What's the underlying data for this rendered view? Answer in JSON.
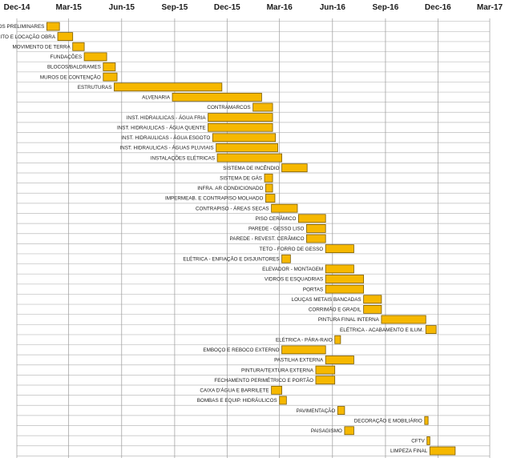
{
  "chart_data": {
    "type": "bar",
    "subtype": "gantt",
    "title": "",
    "xlabel": "",
    "ylabel": "",
    "x_axis": {
      "kind": "date",
      "range": [
        "2014-12-01",
        "2017-03-01"
      ],
      "tick_labels": [
        "Dec-14",
        "Mar-15",
        "Jun-15",
        "Sep-15",
        "Dec-15",
        "Mar-16",
        "Jun-16",
        "Sep-16",
        "Dec-16",
        "Mar-17"
      ],
      "tick_dates": [
        "2014-12-01",
        "2015-03-01",
        "2015-06-01",
        "2015-09-01",
        "2015-12-01",
        "2016-03-01",
        "2016-06-01",
        "2016-09-01",
        "2016-12-01",
        "2017-03-01"
      ],
      "position": "top",
      "grid": true
    },
    "bar_color": "#f6b800",
    "tasks": [
      {
        "label": "SERVIÇOS  PRELIMINARES",
        "start": "2015-01-22",
        "end": "2015-02-13"
      },
      {
        "label": "GABARITO  E LOCAÇÃO OBRA",
        "start": "2015-02-10",
        "end": "2015-03-08"
      },
      {
        "label": "MOVIMENTO  DE TERRA",
        "start": "2015-03-08",
        "end": "2015-03-28"
      },
      {
        "label": "FUNDAÇÕES",
        "start": "2015-03-28",
        "end": "2015-05-06"
      },
      {
        "label": "BLOCOS/BALDRAMES",
        "start": "2015-04-30",
        "end": "2015-05-21"
      },
      {
        "label": "MUROS DE CONTENÇÃO",
        "start": "2015-04-30",
        "end": "2015-05-24"
      },
      {
        "label": "ESTRUTURAS",
        "start": "2015-05-19",
        "end": "2015-11-22"
      },
      {
        "label": "ALVENARIA",
        "start": "2015-08-28",
        "end": "2016-01-30"
      },
      {
        "label": "CONTRAMARCOS",
        "start": "2016-01-15",
        "end": "2016-02-18"
      },
      {
        "label": "INST. HIDRAULICAS  - ÁGUA FRIA",
        "start": "2015-10-29",
        "end": "2016-02-18"
      },
      {
        "label": "INST.  HIDRAULICAS  - ÁGUA QUENTE",
        "start": "2015-10-29",
        "end": "2016-02-18"
      },
      {
        "label": "INST.  HIDRAULICAS  - ÁGUA ESGOTO",
        "start": "2015-11-06",
        "end": "2016-02-23"
      },
      {
        "label": "INST. HIDRAULICAS  - ÁGUAS PLUVIAIS",
        "start": "2015-11-12",
        "end": "2016-02-27"
      },
      {
        "label": "INSTALAÇÕES  ELÉTRICAS",
        "start": "2015-11-14",
        "end": "2016-03-05"
      },
      {
        "label": "SISTEMA  DE INCÊNDIO",
        "start": "2016-03-05",
        "end": "2016-04-18"
      },
      {
        "label": "SISTEMA  DE GÁS",
        "start": "2016-02-04",
        "end": "2016-02-18"
      },
      {
        "label": "INFRA.  AR CONDICIONADO",
        "start": "2016-02-06",
        "end": "2016-02-18"
      },
      {
        "label": "IMPERMEAB.  E CONTRAPISO MOLHADO",
        "start": "2016-02-06",
        "end": "2016-02-22"
      },
      {
        "label": "CONTRAPISO  - ÁREAS  SECAS",
        "start": "2016-02-16",
        "end": "2016-04-01"
      },
      {
        "label": "PISO CERÂMICO",
        "start": "2016-04-03",
        "end": "2016-05-20"
      },
      {
        "label": "PAREDE  - GESSO  LISO",
        "start": "2016-04-17",
        "end": "2016-05-20"
      },
      {
        "label": "PAREDE  - REVEST.  CERÂMICO",
        "start": "2016-04-17",
        "end": "2016-05-20"
      },
      {
        "label": "TETO  - FORRO DE GESSO",
        "start": "2016-05-20",
        "end": "2016-07-08"
      },
      {
        "label": "ELÉTRICA  - ENFIAÇÃO  E DISJUNTORES",
        "start": "2016-03-05",
        "end": "2016-03-20"
      },
      {
        "label": "ELEVADOR  - MONTAGEM",
        "start": "2016-05-20",
        "end": "2016-07-08"
      },
      {
        "label": "VIDROS  E ESQUADRIAS",
        "start": "2016-05-20",
        "end": "2016-07-25"
      },
      {
        "label": "PORTAS",
        "start": "2016-05-20",
        "end": "2016-07-25"
      },
      {
        "label": "LOUÇAS METAIS  BANCADAS",
        "start": "2016-07-25",
        "end": "2016-08-25"
      },
      {
        "label": "CORRIMÃO  E GRADIL",
        "start": "2016-07-25",
        "end": "2016-08-25"
      },
      {
        "label": "PINTURA  FINAL INTERNA",
        "start": "2016-08-25",
        "end": "2016-11-10"
      },
      {
        "label": "ELÉTRICA  - ACABAMENTO  E ILUM.",
        "start": "2016-11-10",
        "end": "2016-11-28"
      },
      {
        "label": "ELÉTRICA  - PÁRA-RAIO",
        "start": "2016-06-05",
        "end": "2016-06-15"
      },
      {
        "label": "EMBOÇO E REBOCO  EXTERNO",
        "start": "2016-03-05",
        "end": "2016-05-20"
      },
      {
        "label": "PASTILHA  EXTERNA",
        "start": "2016-05-20",
        "end": "2016-07-08"
      },
      {
        "label": "PINTURA/TEXTURA  EXTERNA",
        "start": "2016-05-03",
        "end": "2016-06-05"
      },
      {
        "label": "FECHAMENTO  PERIMÉTRICO  E PORTÃO",
        "start": "2016-05-03",
        "end": "2016-06-05"
      },
      {
        "label": "CAIXA  D'ÁGUA  E BARRILETE",
        "start": "2016-02-16",
        "end": "2016-03-05"
      },
      {
        "label": "BOMBAS  E EQUIP.  HIDRÁULICOS",
        "start": "2016-03-01",
        "end": "2016-03-13"
      },
      {
        "label": "PAVIMENTAÇÃO",
        "start": "2016-06-10",
        "end": "2016-06-22"
      },
      {
        "label": "DECORAÇÃO  E MOBILIÁRIO",
        "start": "2016-11-08",
        "end": "2016-11-14"
      },
      {
        "label": "PAISAGISMO",
        "start": "2016-06-22",
        "end": "2016-07-08"
      },
      {
        "label": "CFTV",
        "start": "2016-11-12",
        "end": "2016-11-17"
      },
      {
        "label": "LIMPEZA  FINAL",
        "start": "2016-11-17",
        "end": "2016-12-31"
      }
    ]
  }
}
